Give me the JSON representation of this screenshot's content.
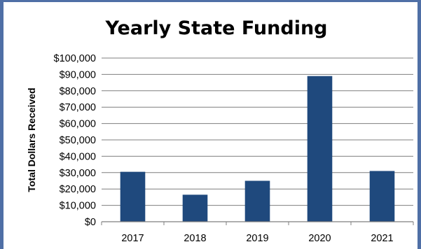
{
  "chart_data": {
    "type": "bar",
    "title": "Yearly State Funding",
    "xlabel": "",
    "ylabel": "Total Dollars Received",
    "categories": [
      "2017",
      "2018",
      "2019",
      "2020",
      "2021"
    ],
    "values": [
      30500,
      16500,
      25000,
      89000,
      31000
    ],
    "ylim": [
      0,
      100000
    ],
    "yticks": [
      0,
      10000,
      20000,
      30000,
      40000,
      50000,
      60000,
      70000,
      80000,
      90000,
      100000
    ],
    "ytick_labels": [
      "$0",
      "$10,000",
      "$20,000",
      "$30,000",
      "$40,000",
      "$50,000",
      "$60,000",
      "$70,000",
      "$80,000",
      "$90,000",
      "$100,000"
    ],
    "grid": true,
    "legend": "none",
    "bar_color": "#1f497d",
    "grid_color": "#7f7f7f",
    "frame_color": "#4f6fa6"
  }
}
